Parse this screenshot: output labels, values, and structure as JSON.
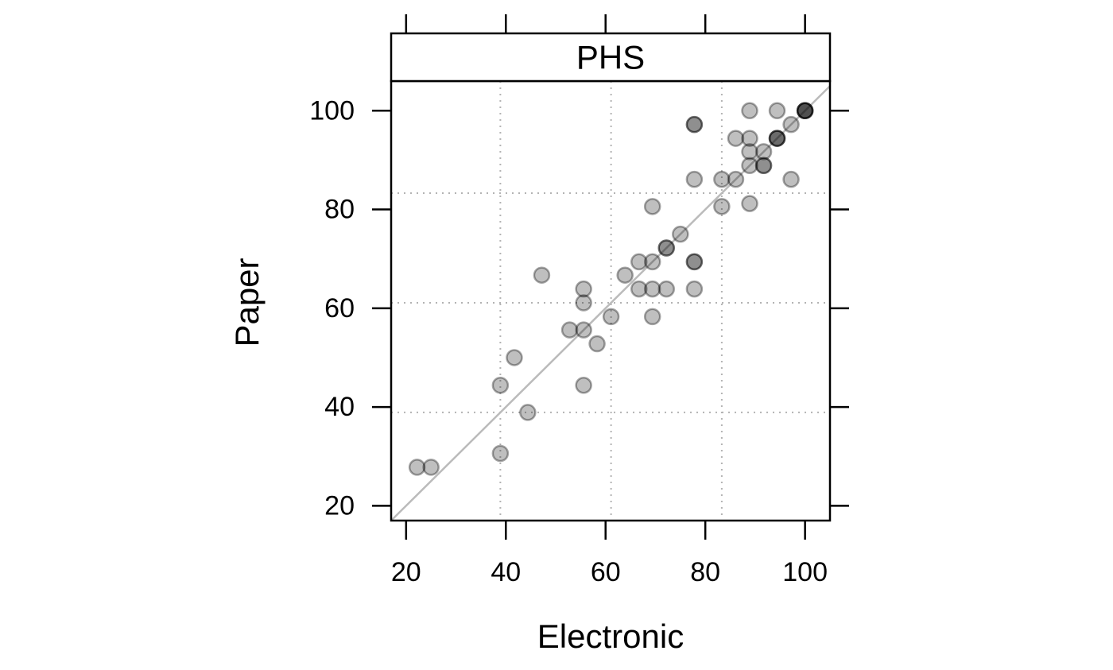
{
  "chart_data": {
    "type": "scatter",
    "panel_title": "PHS",
    "xlabel": "Electronic",
    "ylabel": "Paper",
    "xlim": [
      17,
      105
    ],
    "ylim": [
      17,
      106
    ],
    "x_ticks": [
      20,
      40,
      60,
      80,
      100
    ],
    "x_tick_labels": [
      "20",
      "40",
      "60",
      "80",
      "100"
    ],
    "y_ticks": [
      20,
      40,
      60,
      80,
      100
    ],
    "y_tick_labels": [
      "20",
      "40",
      "60",
      "80",
      "100"
    ],
    "grid": true,
    "grid_x": [
      38.9,
      61.1,
      83.3
    ],
    "grid_y": [
      38.9,
      61.1,
      83.3
    ],
    "reference_line": {
      "type": "identity",
      "description": "y = x"
    },
    "point_color": "#000000",
    "point_opacity": 0.25,
    "line_color": "#bbbbbb",
    "grid_color": "#b3b3b3",
    "points": [
      {
        "x": 22.2,
        "y": 27.8
      },
      {
        "x": 25.0,
        "y": 27.8
      },
      {
        "x": 38.9,
        "y": 30.6
      },
      {
        "x": 38.9,
        "y": 44.4
      },
      {
        "x": 41.7,
        "y": 50.0
      },
      {
        "x": 44.4,
        "y": 38.9
      },
      {
        "x": 47.2,
        "y": 66.7
      },
      {
        "x": 52.8,
        "y": 55.6
      },
      {
        "x": 55.6,
        "y": 55.6
      },
      {
        "x": 55.6,
        "y": 61.1
      },
      {
        "x": 55.6,
        "y": 63.9
      },
      {
        "x": 55.6,
        "y": 44.4
      },
      {
        "x": 58.3,
        "y": 52.8
      },
      {
        "x": 61.1,
        "y": 58.3
      },
      {
        "x": 63.9,
        "y": 66.7
      },
      {
        "x": 66.7,
        "y": 63.9
      },
      {
        "x": 66.7,
        "y": 69.4
      },
      {
        "x": 69.4,
        "y": 69.4
      },
      {
        "x": 69.4,
        "y": 63.9
      },
      {
        "x": 69.4,
        "y": 58.3
      },
      {
        "x": 69.4,
        "y": 80.6
      },
      {
        "x": 72.2,
        "y": 63.9
      },
      {
        "x": 72.2,
        "y": 72.2
      },
      {
        "x": 72.2,
        "y": 72.2
      },
      {
        "x": 75.0,
        "y": 75.0
      },
      {
        "x": 77.8,
        "y": 69.4
      },
      {
        "x": 77.8,
        "y": 69.4
      },
      {
        "x": 77.8,
        "y": 63.9
      },
      {
        "x": 77.8,
        "y": 86.1
      },
      {
        "x": 77.8,
        "y": 97.2
      },
      {
        "x": 77.8,
        "y": 97.2
      },
      {
        "x": 83.3,
        "y": 80.6
      },
      {
        "x": 83.3,
        "y": 86.1
      },
      {
        "x": 86.1,
        "y": 86.1
      },
      {
        "x": 86.1,
        "y": 94.4
      },
      {
        "x": 88.9,
        "y": 88.9
      },
      {
        "x": 88.9,
        "y": 91.7
      },
      {
        "x": 88.9,
        "y": 94.4
      },
      {
        "x": 88.9,
        "y": 100.0
      },
      {
        "x": 88.9,
        "y": 81.2
      },
      {
        "x": 91.7,
        "y": 88.9
      },
      {
        "x": 91.7,
        "y": 88.9
      },
      {
        "x": 91.7,
        "y": 91.7
      },
      {
        "x": 94.4,
        "y": 94.4
      },
      {
        "x": 94.4,
        "y": 94.4
      },
      {
        "x": 94.4,
        "y": 94.4
      },
      {
        "x": 94.4,
        "y": 100.0
      },
      {
        "x": 97.2,
        "y": 97.2
      },
      {
        "x": 97.2,
        "y": 86.1
      },
      {
        "x": 100.0,
        "y": 100.0
      },
      {
        "x": 100.0,
        "y": 100.0
      },
      {
        "x": 100.0,
        "y": 100.0
      },
      {
        "x": 100.0,
        "y": 100.0
      }
    ]
  }
}
